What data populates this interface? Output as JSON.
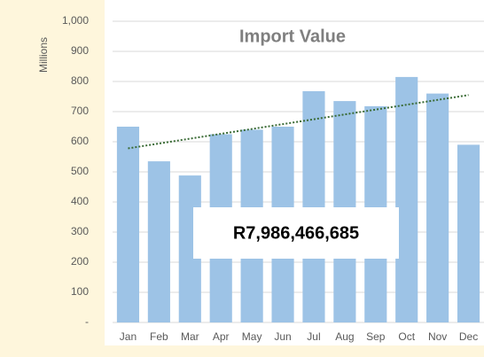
{
  "chart_data": {
    "type": "bar",
    "title": "Import Value",
    "y_label": "Millions",
    "annotation": "R7,986,466,685",
    "categories": [
      "Jan",
      "Feb",
      "Mar",
      "Apr",
      "May",
      "Jun",
      "Jul",
      "Aug",
      "Sep",
      "Oct",
      "Nov",
      "Dec"
    ],
    "values": [
      650,
      535,
      488,
      625,
      640,
      650,
      768,
      735,
      718,
      815,
      760,
      590
    ],
    "color": "#9dc3e6",
    "trendline": {
      "values": [
        578,
        755
      ],
      "color": "#3a6b35"
    },
    "ylim": [
      0,
      1000
    ],
    "yticks": [
      {
        "value": 0,
        "label": "-"
      },
      100,
      200,
      300,
      400,
      500,
      600,
      700,
      800,
      900,
      {
        "value": 1000,
        "label": "1,000"
      }
    ],
    "grid": true
  }
}
